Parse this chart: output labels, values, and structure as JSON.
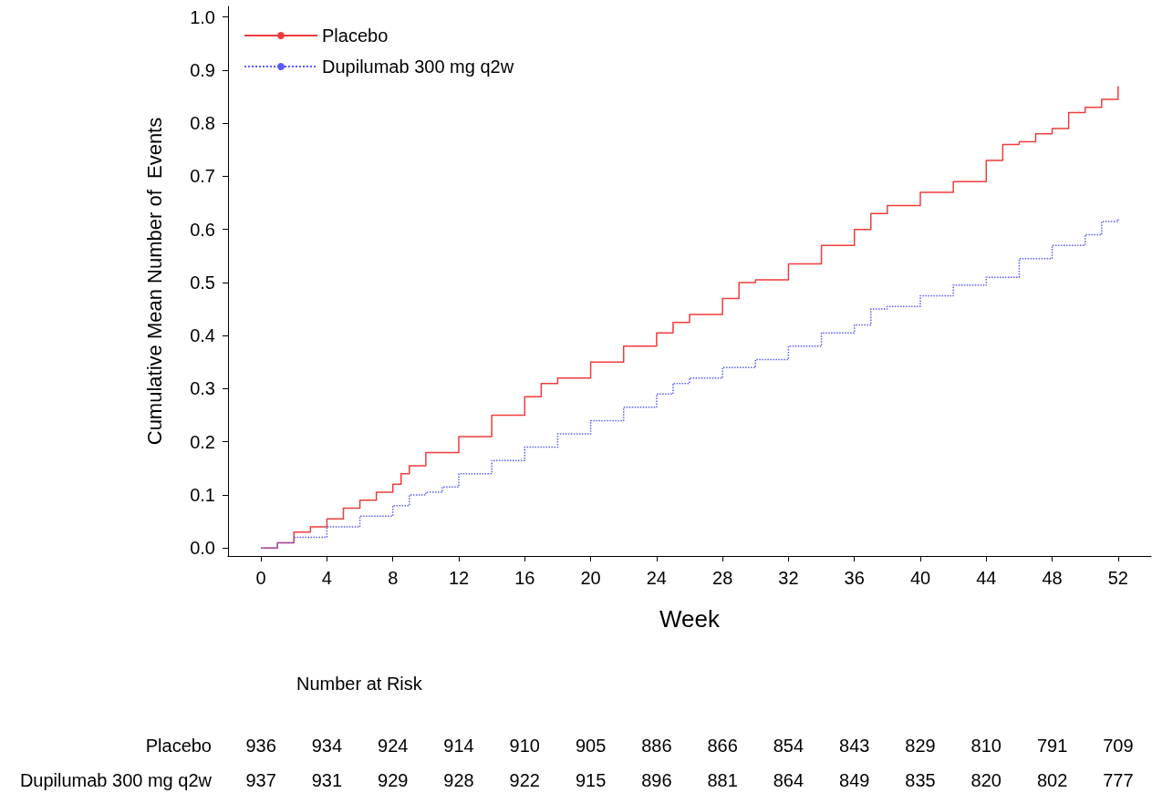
{
  "chart_data": {
    "type": "step",
    "xlabel": "Week",
    "ylabel": "Cumulative Mean Number of  Events",
    "xlim": [
      -2,
      54
    ],
    "xticks": [
      0,
      4,
      8,
      12,
      16,
      20,
      24,
      28,
      32,
      36,
      40,
      44,
      48,
      52
    ],
    "ylim": [
      -0.015,
      1.02
    ],
    "yticks": [
      {
        "value": 0,
        "label": "0.0"
      },
      0.1,
      0.2,
      0.3,
      0.4,
      0.5,
      0.6,
      0.7,
      0.8,
      0.9,
      {
        "value": 1,
        "label": "1.0"
      }
    ],
    "grid": false,
    "legend": "top left",
    "marker": "none",
    "series": [
      {
        "name": "Placebo",
        "color": "#f03c3c",
        "line_style": "solid",
        "x": [
          0,
          1,
          2,
          3,
          4,
          5,
          6,
          7,
          8,
          8.5,
          9,
          10,
          12,
          14,
          16,
          17,
          18,
          20,
          22,
          24,
          25,
          26,
          28,
          29,
          30,
          32,
          34,
          36,
          37,
          38,
          40,
          42,
          44,
          45,
          46,
          47,
          48,
          49,
          50,
          51,
          52
        ],
        "values": [
          0,
          0.01,
          0.03,
          0.04,
          0.055,
          0.075,
          0.09,
          0.105,
          0.12,
          0.14,
          0.155,
          0.18,
          0.21,
          0.25,
          0.285,
          0.31,
          0.32,
          0.35,
          0.38,
          0.405,
          0.425,
          0.44,
          0.47,
          0.5,
          0.505,
          0.535,
          0.57,
          0.6,
          0.63,
          0.645,
          0.67,
          0.69,
          0.73,
          0.76,
          0.765,
          0.78,
          0.79,
          0.82,
          0.83,
          0.845,
          0.87
        ]
      },
      {
        "name": "Dupilumab 300 mg q2w",
        "color": "#5a5aff",
        "line_style": "dotted",
        "x": [
          0,
          1,
          2,
          4,
          6,
          8,
          9,
          10,
          11,
          12,
          14,
          16,
          18,
          20,
          22,
          24,
          25,
          26,
          28,
          30,
          32,
          34,
          36,
          37,
          38,
          40,
          42,
          44,
          46,
          48,
          50,
          51,
          52
        ],
        "values": [
          0,
          0.01,
          0.02,
          0.04,
          0.06,
          0.08,
          0.1,
          0.105,
          0.115,
          0.14,
          0.165,
          0.19,
          0.215,
          0.24,
          0.265,
          0.29,
          0.31,
          0.32,
          0.34,
          0.355,
          0.38,
          0.405,
          0.42,
          0.45,
          0.455,
          0.475,
          0.495,
          0.51,
          0.545,
          0.57,
          0.59,
          0.615,
          0.62
        ]
      }
    ],
    "annotations": [
      "Number at Risk",
      "Placebo",
      "936",
      "934",
      "924",
      "914",
      "910",
      "905",
      "886",
      "866",
      "854",
      "843",
      "829",
      "810",
      "791",
      "709",
      "Dupilumab 300 mg q2w",
      "937",
      "931",
      "929",
      "928",
      "922",
      "915",
      "896",
      "881",
      "864",
      "849",
      "835",
      "820",
      "802",
      "777"
    ]
  }
}
